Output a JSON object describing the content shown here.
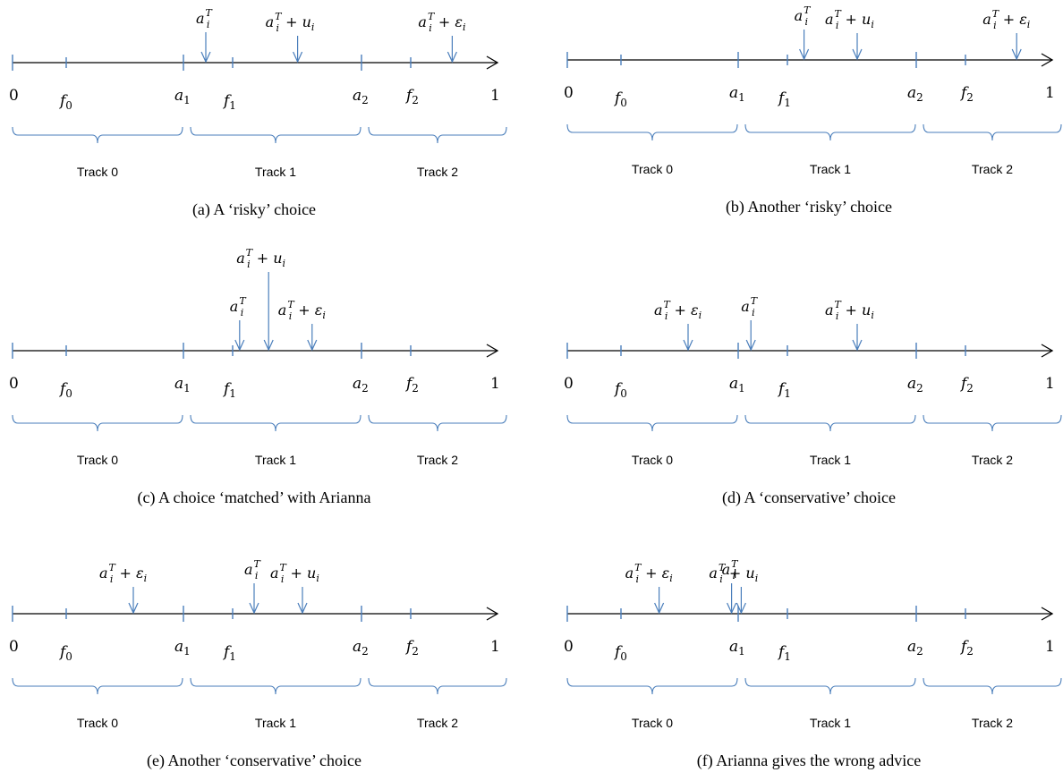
{
  "axis_labels": {
    "zero": "0",
    "f0": "f",
    "f0_sub": "0",
    "a1": "a",
    "a1_sub": "1",
    "f1": "f",
    "f1_sub": "1",
    "a2": "a",
    "a2_sub": "2",
    "f2": "f",
    "f2_sub": "2",
    "one": "1"
  },
  "tracks": [
    "Track 0",
    "Track 1",
    "Track 2"
  ],
  "annotation_texts": {
    "aT": {
      "base": "a",
      "sub": "i",
      "sup": "T",
      "op": "",
      "term": "",
      "term_sub": ""
    },
    "aT_u": {
      "base": "a",
      "sub": "i",
      "sup": "T",
      "op": " + ",
      "term": "u",
      "term_sub": "i"
    },
    "aT_eps": {
      "base": "a",
      "sub": "i",
      "sup": "T",
      "op": " + ",
      "term": "ε",
      "term_sub": "i"
    }
  },
  "panels": [
    {
      "id": "a",
      "caption": "(a)  A ‘risky’ choice",
      "markers": [
        {
          "label": "aT",
          "value": 0.4
        },
        {
          "label": "aT_u",
          "value": 0.59
        },
        {
          "label": "aT_eps",
          "value": 0.91
        }
      ]
    },
    {
      "id": "b",
      "caption": "(b)  Another ‘risky’ choice",
      "markers": [
        {
          "label": "aT",
          "value": 0.49
        },
        {
          "label": "aT_u",
          "value": 0.6
        },
        {
          "label": "aT_eps",
          "value": 0.93
        }
      ]
    },
    {
      "id": "c",
      "caption": "(c)  A choice ‘matched’ with Arianna",
      "markers": [
        {
          "label": "aT",
          "value": 0.47
        },
        {
          "label": "aT_u",
          "value": 0.53
        },
        {
          "label": "aT_eps",
          "value": 0.62
        }
      ]
    },
    {
      "id": "d",
      "caption": "(d)  A ‘conservative’ choice",
      "markers": [
        {
          "label": "aT_eps",
          "value": 0.25
        },
        {
          "label": "aT",
          "value": 0.38
        },
        {
          "label": "aT_u",
          "value": 0.6
        }
      ]
    },
    {
      "id": "e",
      "caption": "(e)  Another ‘conservative’ choice",
      "markers": [
        {
          "label": "aT_eps",
          "value": 0.25
        },
        {
          "label": "aT",
          "value": 0.5
        },
        {
          "label": "aT_u",
          "value": 0.6
        }
      ]
    },
    {
      "id": "f",
      "caption": "(f)  Arianna gives the wrong advice",
      "markers": [
        {
          "label": "aT_eps",
          "value": 0.19
        },
        {
          "label": "aT",
          "value": 0.34
        },
        {
          "label": "aT_u",
          "value": 0.36
        }
      ]
    }
  ]
}
